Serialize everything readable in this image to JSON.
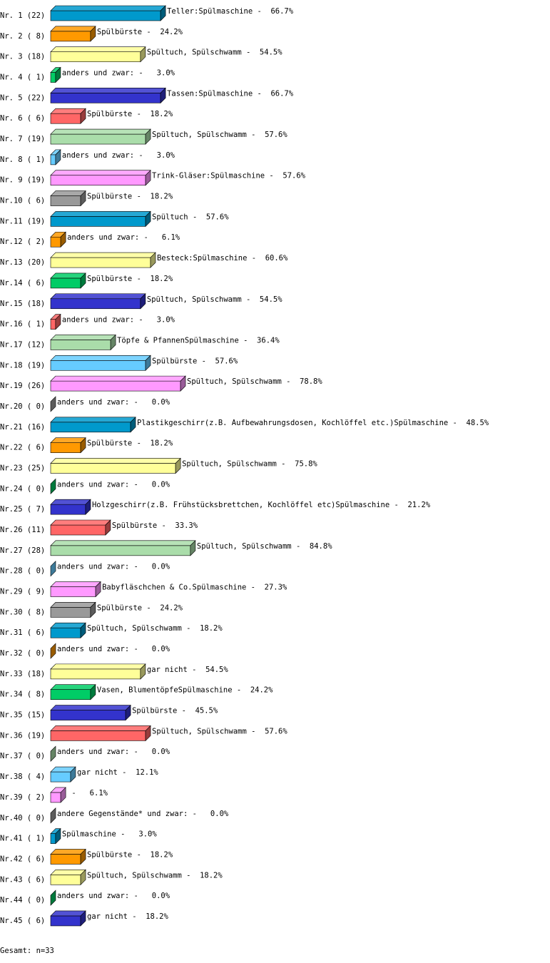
{
  "chart_data": {
    "type": "bar",
    "orientation": "horizontal",
    "three_d": true,
    "palette": [
      "#0099cc",
      "#ff9900",
      "#ffff99",
      "#00cc66",
      "#3333cc",
      "#ff6666",
      "#aaddaa",
      "#66ccff",
      "#ff99ff",
      "#999999"
    ],
    "categories": [
      "Nr. 1 (22)",
      "Nr. 2 ( 8)",
      "Nr. 3 (18)",
      "Nr. 4 ( 1)",
      "Nr. 5 (22)",
      "Nr. 6 ( 6)",
      "Nr. 7 (19)",
      "Nr. 8 ( 1)",
      "Nr. 9 (19)",
      "Nr.10 ( 6)",
      "Nr.11 (19)",
      "Nr.12 ( 2)",
      "Nr.13 (20)",
      "Nr.14 ( 6)",
      "Nr.15 (18)",
      "Nr.16 ( 1)",
      "Nr.17 (12)",
      "Nr.18 (19)",
      "Nr.19 (26)",
      "Nr.20 ( 0)",
      "Nr.21 (16)",
      "Nr.22 ( 6)",
      "Nr.23 (25)",
      "Nr.24 ( 0)",
      "Nr.25 ( 7)",
      "Nr.26 (11)",
      "Nr.27 (28)",
      "Nr.28 ( 0)",
      "Nr.29 ( 9)",
      "Nr.30 ( 8)",
      "Nr.31 ( 6)",
      "Nr.32 ( 0)",
      "Nr.33 (18)",
      "Nr.34 ( 8)",
      "Nr.35 (15)",
      "Nr.36 (19)",
      "Nr.37 ( 0)",
      "Nr.38 ( 4)",
      "Nr.39 ( 2)",
      "Nr.40 ( 0)",
      "Nr.41 ( 1)",
      "Nr.42 ( 6)",
      "Nr.43 ( 6)",
      "Nr.44 ( 0)",
      "Nr.45 ( 6)"
    ],
    "values": [
      66.7,
      24.2,
      54.5,
      3.0,
      66.7,
      18.2,
      57.6,
      3.0,
      57.6,
      18.2,
      57.6,
      6.1,
      60.6,
      18.2,
      54.5,
      3.0,
      36.4,
      57.6,
      78.8,
      0.0,
      48.5,
      18.2,
      75.8,
      0.0,
      21.2,
      33.3,
      84.8,
      0.0,
      27.3,
      24.2,
      18.2,
      0.0,
      54.5,
      24.2,
      45.5,
      57.6,
      0.0,
      12.1,
      6.1,
      0.0,
      3.0,
      18.2,
      18.2,
      0.0,
      18.2
    ],
    "value_labels": [
      "Teller:Spülmaschine -  66.7%",
      "Spülbürste -  24.2%",
      "Spültuch, Spülschwamm -  54.5%",
      "anders und zwar: -   3.0%",
      "Tassen:Spülmaschine -  66.7%",
      "Spülbürste -  18.2%",
      "Spültuch, Spülschwamm -  57.6%",
      "anders und zwar: -   3.0%",
      "Trink-Gläser:Spülmaschine -  57.6%",
      "Spülbürste -  18.2%",
      "Spültuch -  57.6%",
      "anders und zwar: -   6.1%",
      "Besteck:Spülmaschine -  60.6%",
      "Spülbürste -  18.2%",
      "Spültuch, Spülschwamm -  54.5%",
      "anders und zwar: -   3.0%",
      "Töpfe & PfannenSpülmaschine -  36.4%",
      "Spülbürste -  57.6%",
      "Spültuch, Spülschwamm -  78.8%",
      "anders und zwar: -   0.0%",
      "Plastikgeschirr(z.B. Aufbewahrungsdosen, Kochlöffel etc.)Spülmaschine -  48.5%",
      "Spülbürste -  18.2%",
      "Spültuch, Spülschwamm -  75.8%",
      "anders und zwar: -   0.0%",
      "Holzgeschirr(z.B. Frühstücksbrettchen, Kochlöffel etc)Spülmaschine -  21.2%",
      "Spülbürste -  33.3%",
      "Spültuch, Spülschwamm -  84.8%",
      "anders und zwar: -   0.0%",
      "Babyfläschchen & Co.Spülmaschine -  27.3%",
      "Spülbürste -  24.2%",
      "Spültuch, Spülschwamm -  18.2%",
      "anders und zwar: -   0.0%",
      "gar nicht -  54.5%",
      "Vasen, BlumentöpfeSpülmaschine -  24.2%",
      "Spülbürste -  45.5%",
      "Spültuch, Spülschwamm -  57.6%",
      "anders und zwar: -   0.0%",
      "gar nicht -  12.1%",
      " -   6.1%",
      "andere Gegenstände* und zwar: -   0.0%",
      "Spülmaschine -   3.0%",
      "Spülbürste -  18.2%",
      "Spültuch, Spülschwamm -  18.2%",
      "anders und zwar: -   0.0%",
      "gar nicht -  18.2%"
    ],
    "footer": "Gesamt: n=33"
  }
}
